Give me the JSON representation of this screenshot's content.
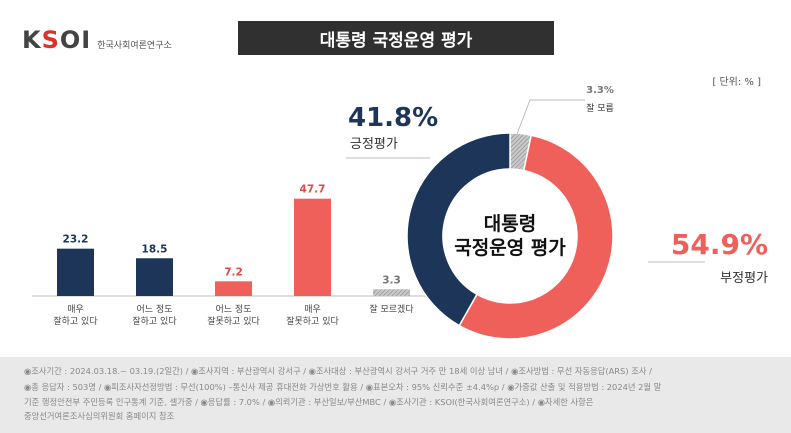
{
  "header": {
    "logo_text": "KSOI",
    "logo_sub": "한국사회여론연구소",
    "title": "대통령 국정운영 평가",
    "unit": "[ 단위: % ]"
  },
  "colors": {
    "positive": "#1c3559",
    "negative": "#f0605a",
    "unknown": "#b8b8b8",
    "title_bg": "#303030"
  },
  "chart_data": [
    {
      "type": "bar",
      "categories": [
        "매우\n잘하고 있다",
        "어느 정도\n잘하고 있다",
        "어느 정도\n잘못하고 있다",
        "매우\n잘못하고 있다",
        "잘 모르겠다"
      ],
      "values": [
        23.2,
        18.5,
        7.2,
        47.7,
        3.3
      ],
      "value_labels": [
        "23.2",
        "18.5",
        "7.2",
        "47.7",
        "3.3"
      ],
      "colors": [
        "#1c3559",
        "#1c3559",
        "#f0605a",
        "#f0605a",
        "hatched-gray"
      ],
      "ylim": [
        0,
        50
      ],
      "grid": false
    },
    {
      "type": "pie",
      "donut": true,
      "center_label": [
        "대통령",
        "국정운영 평가"
      ],
      "slices": [
        {
          "label": "긍정평가",
          "value": 41.8,
          "value_label": "41.8%",
          "color": "#1c3559"
        },
        {
          "label": "부정평가",
          "value": 54.9,
          "value_label": "54.9%",
          "color": "#f0605a"
        },
        {
          "label": "잘 모름",
          "value": 3.3,
          "value_label": "3.3%",
          "color": "hatched-gray"
        }
      ]
    }
  ],
  "footer": {
    "lines": [
      "◉조사기간 : 2024.03.18.~ 03.19.(2일간)   / ◉조사지역 : 부산광역시 강서구 / ◉조사대상 : 부산광역시 강서구 거주 만 18세 이상 남녀 / ◉조사방법 : 무선 자동응답(ARS) 조사 /",
      "◉총 응답자 : 503명 / ◉피조사자선정방법 : 무선(100%) –통신사 제공 휴대전화 가상번호 활용 / ◉표본오차 : 95% 신뢰수준 ±4.4%p / ◉가중값 산출 및 적용방법 : 2024년 2월 말",
      "기준 행정안전부 주민등록 인구통계 기준, 셀가중 / ◉응답률 : 7.0% / ◉의뢰기관 : 부산일보/부산MBC / ◉조사기관 : KSOI(한국사회여론연구소) / ◉자세한 사항은",
      "중앙선거여론조사심의위원회 홈페이지 참조"
    ]
  }
}
